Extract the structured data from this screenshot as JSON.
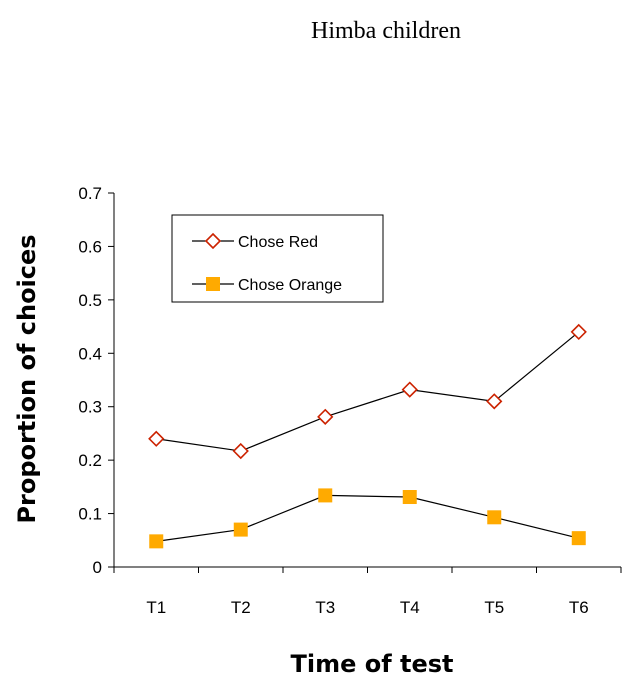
{
  "chart_data": {
    "type": "line",
    "title": "Himba children",
    "xlabel": "Time of test",
    "ylabel": "Proportion of choices",
    "categories": [
      "T1",
      "T2",
      "T3",
      "T4",
      "T5",
      "T6"
    ],
    "ylim": [
      0,
      0.7
    ],
    "yticks": [
      "0",
      "0.1",
      "0.2",
      "0.3",
      "0.4",
      "0.5",
      "0.6",
      "0.7"
    ],
    "grid": false,
    "legend_position": "top-left",
    "series": [
      {
        "name": "Chose Red",
        "values": [
          0.24,
          0.217,
          0.281,
          0.332,
          0.31,
          0.44
        ],
        "color": "#cc2200",
        "marker": "diamond-open"
      },
      {
        "name": "Chose Orange",
        "values": [
          0.048,
          0.07,
          0.134,
          0.131,
          0.093,
          0.054
        ],
        "color": "#ffaa00",
        "marker": "square-filled"
      }
    ]
  }
}
